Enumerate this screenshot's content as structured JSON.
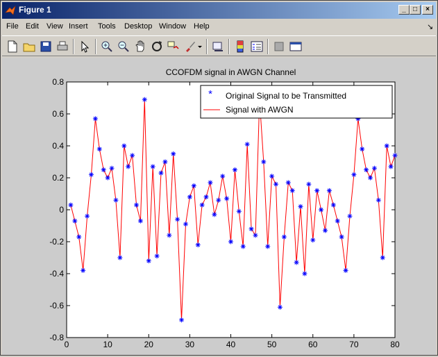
{
  "window": {
    "title": "Figure 1",
    "controls": [
      "_",
      "□",
      "×"
    ]
  },
  "menu": {
    "items": [
      {
        "label": "File"
      },
      {
        "label": "Edit"
      },
      {
        "label": "View"
      },
      {
        "label": "Insert"
      },
      {
        "label": "Tools"
      },
      {
        "label": "Desktop"
      },
      {
        "label": "Window"
      },
      {
        "label": "Help"
      }
    ],
    "dock_arrow": "↘"
  },
  "toolbar": {
    "icons": [
      "new-figure-icon",
      "open-file-icon",
      "save-icon",
      "print-icon",
      "edit-plot-icon",
      "zoom-in-icon",
      "zoom-out-icon",
      "pan-icon",
      "rotate-3d-icon",
      "data-cursor-icon",
      "brush-icon",
      "brush-dropdown-icon",
      "link-plot-icon",
      "insert-colorbar-icon",
      "insert-legend-icon",
      "hide-plot-tools-icon",
      "show-plot-tools-icon"
    ]
  },
  "colors": {
    "series_line": "#ff0000",
    "series_marker": "#0000ff",
    "plot_bg": "#ffffff",
    "figure_bg": "#cccccc",
    "title_bar_start": "#0a246a",
    "title_bar_end": "#a6caf0"
  },
  "chart_data": {
    "type": "line",
    "title": "CCOFDM signal in AWGN Channel",
    "xlabel": "",
    "ylabel": "",
    "xlim": [
      0,
      80
    ],
    "ylim": [
      -0.8,
      0.8
    ],
    "xticks": [
      0,
      10,
      20,
      30,
      40,
      50,
      60,
      70,
      80
    ],
    "yticks": [
      -0.8,
      -0.6,
      -0.4,
      -0.2,
      0,
      0.2,
      0.4,
      0.6,
      0.8
    ],
    "legend": {
      "placement": "top-right",
      "entries": [
        "Original Signal to be Transmitted",
        "Signal with AWGN"
      ]
    },
    "grid": false,
    "x": [
      1,
      2,
      3,
      4,
      5,
      6,
      7,
      8,
      9,
      10,
      11,
      12,
      13,
      14,
      15,
      16,
      17,
      18,
      19,
      20,
      21,
      22,
      23,
      24,
      25,
      26,
      27,
      28,
      29,
      30,
      31,
      32,
      33,
      34,
      35,
      36,
      37,
      38,
      39,
      40,
      41,
      42,
      43,
      44,
      45,
      46,
      47,
      48,
      49,
      50,
      51,
      52,
      53,
      54,
      55,
      56,
      57,
      58,
      59,
      60,
      61,
      62,
      63,
      64,
      65,
      66,
      67,
      68,
      69,
      70,
      71,
      72,
      73,
      74,
      75,
      76,
      77,
      78,
      79,
      80
    ],
    "series": [
      {
        "name": "Original Signal to be Transmitted",
        "style": "marker",
        "values": [
          0.03,
          -0.07,
          -0.17,
          -0.38,
          -0.04,
          0.22,
          0.57,
          0.38,
          0.25,
          0.2,
          0.26,
          0.06,
          -0.3,
          0.4,
          0.27,
          0.34,
          0.03,
          -0.07,
          0.69,
          -0.32,
          0.27,
          -0.29,
          0.23,
          0.3,
          -0.16,
          0.35,
          -0.06,
          -0.69,
          -0.09,
          0.08,
          0.15,
          -0.22,
          0.03,
          0.08,
          0.17,
          -0.03,
          0.06,
          0.21,
          0.07,
          -0.2,
          0.25,
          -0.01,
          -0.23,
          0.41,
          -0.12,
          -0.16,
          0.69,
          0.3,
          -0.23,
          0.21,
          0.16,
          -0.61,
          -0.17,
          0.17,
          0.12,
          -0.33,
          0.02,
          -0.4,
          0.16,
          -0.19,
          0.12,
          0.0,
          -0.13,
          0.12,
          0.03,
          -0.07,
          -0.17,
          -0.38,
          -0.04,
          0.22,
          0.57,
          0.38,
          0.25,
          0.2,
          0.26,
          0.06,
          -0.3,
          0.4,
          0.27,
          0.34
        ]
      },
      {
        "name": "Signal with AWGN",
        "style": "line",
        "values": [
          0.03,
          -0.07,
          -0.17,
          -0.38,
          -0.04,
          0.22,
          0.57,
          0.38,
          0.25,
          0.2,
          0.26,
          0.06,
          -0.3,
          0.4,
          0.27,
          0.34,
          0.03,
          -0.07,
          0.69,
          -0.32,
          0.27,
          -0.29,
          0.23,
          0.3,
          -0.16,
          0.35,
          -0.06,
          -0.69,
          -0.09,
          0.08,
          0.15,
          -0.22,
          0.03,
          0.08,
          0.17,
          -0.03,
          0.06,
          0.21,
          0.07,
          -0.2,
          0.25,
          -0.01,
          -0.23,
          0.41,
          -0.12,
          -0.16,
          0.69,
          0.3,
          -0.23,
          0.21,
          0.16,
          -0.61,
          -0.17,
          0.17,
          0.12,
          -0.33,
          0.02,
          -0.4,
          0.16,
          -0.19,
          0.12,
          0.0,
          -0.13,
          0.12,
          0.03,
          -0.07,
          -0.17,
          -0.38,
          -0.04,
          0.22,
          0.57,
          0.38,
          0.25,
          0.2,
          0.26,
          0.06,
          -0.3,
          0.4,
          0.27,
          0.34
        ]
      }
    ]
  }
}
